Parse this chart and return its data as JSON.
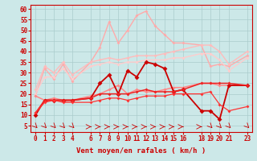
{
  "bg_color": "#cce8e8",
  "grid_color": "#aacccc",
  "xlabel": "Vent moyen/en rafales ( km/h )",
  "ylim": [
    2,
    62
  ],
  "xlim": [
    -0.5,
    23.5
  ],
  "yticks": [
    5,
    10,
    15,
    20,
    25,
    30,
    35,
    40,
    45,
    50,
    55,
    60
  ],
  "xticks": [
    0,
    1,
    2,
    3,
    4,
    6,
    7,
    8,
    9,
    10,
    11,
    12,
    13,
    14,
    15,
    16,
    18,
    19,
    20,
    21,
    23
  ],
  "series": [
    {
      "x": [
        0,
        1,
        2,
        3,
        4,
        6,
        7,
        8,
        9,
        10,
        11,
        12,
        13,
        14,
        15,
        16,
        18,
        19,
        20,
        21,
        23
      ],
      "y": [
        19,
        32,
        27,
        34,
        26,
        35,
        42,
        54,
        44,
        50,
        57,
        59,
        52,
        48,
        44,
        44,
        43,
        33,
        34,
        33,
        38
      ],
      "color": "#ffaaaa",
      "lw": 1.0,
      "ms": 2
    },
    {
      "x": [
        0,
        1,
        2,
        3,
        4,
        6,
        7,
        8,
        9,
        10,
        11,
        12,
        13,
        14,
        15,
        16,
        18,
        19,
        20,
        21,
        23
      ],
      "y": [
        22,
        33,
        30,
        35,
        29,
        35,
        36,
        37,
        36,
        37,
        38,
        38,
        38,
        39,
        40,
        41,
        43,
        43,
        40,
        34,
        40
      ],
      "color": "#ffbbbb",
      "lw": 1.0,
      "ms": 2
    },
    {
      "x": [
        0,
        1,
        2,
        3,
        4,
        6,
        7,
        8,
        9,
        10,
        11,
        12,
        13,
        14,
        15,
        16,
        18,
        19,
        20,
        21,
        23
      ],
      "y": [
        20,
        28,
        28,
        32,
        27,
        33,
        34,
        35,
        34,
        35,
        35,
        36,
        36,
        36,
        37,
        37,
        39,
        39,
        36,
        31,
        37
      ],
      "color": "#ffcccc",
      "lw": 1.0,
      "ms": 2
    },
    {
      "x": [
        0,
        1,
        2,
        3,
        4,
        6,
        7,
        8,
        9,
        10,
        11,
        12,
        13,
        14,
        15,
        16,
        18,
        19,
        20,
        21,
        23
      ],
      "y": [
        19,
        17,
        18,
        17,
        17,
        19,
        20,
        22,
        24,
        20,
        22,
        21,
        21,
        22,
        23,
        23,
        25,
        25,
        24,
        24,
        24
      ],
      "color": "#ff8888",
      "lw": 1.1,
      "ms": 2
    },
    {
      "x": [
        0,
        1,
        2,
        3,
        4,
        6,
        7,
        8,
        9,
        10,
        11,
        12,
        13,
        14,
        15,
        16,
        18,
        19,
        20,
        21,
        23
      ],
      "y": [
        10,
        17,
        17,
        17,
        17,
        18,
        25,
        29,
        20,
        31,
        28,
        35,
        34,
        32,
        21,
        22,
        12,
        12,
        8,
        24,
        24
      ],
      "color": "#cc0000",
      "lw": 1.3,
      "ms": 3
    },
    {
      "x": [
        0,
        1,
        2,
        3,
        4,
        6,
        7,
        8,
        9,
        10,
        11,
        12,
        13,
        14,
        15,
        16,
        18,
        19,
        20,
        21,
        23
      ],
      "y": [
        11,
        17,
        17,
        17,
        17,
        18,
        20,
        20,
        20,
        20,
        21,
        22,
        21,
        21,
        21,
        22,
        25,
        25,
        25,
        25,
        24
      ],
      "color": "#ee2222",
      "lw": 1.1,
      "ms": 2
    },
    {
      "x": [
        0,
        1,
        2,
        3,
        4,
        6,
        7,
        8,
        9,
        10,
        11,
        12,
        13,
        14,
        15,
        16,
        18,
        19,
        20,
        21,
        23
      ],
      "y": [
        11,
        16,
        17,
        16,
        16,
        16,
        17,
        18,
        18,
        17,
        18,
        19,
        19,
        19,
        20,
        20,
        20,
        21,
        15,
        12,
        14
      ],
      "color": "#ff3333",
      "lw": 0.9,
      "ms": 2
    }
  ],
  "tick_fontsize": 5.5,
  "label_fontsize": 6.5
}
